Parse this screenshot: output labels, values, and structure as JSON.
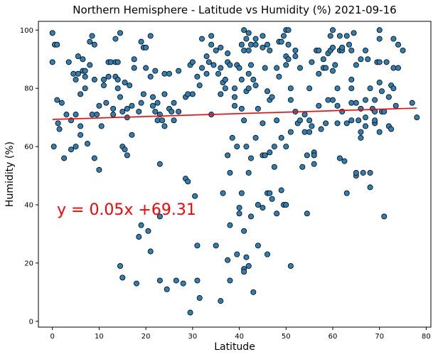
{
  "chart_data": {
    "type": "scatter",
    "title": "Northern Hemisphere - Latitude vs Humidity (%) 2021-09-16",
    "xlabel": "Latitude",
    "ylabel": "Humidity (%)",
    "xlim": [
      -3,
      81
    ],
    "ylim": [
      -2,
      103
    ],
    "xticks": [
      0,
      10,
      20,
      30,
      40,
      50,
      60,
      70,
      80
    ],
    "yticks": [
      0,
      20,
      40,
      60,
      80,
      100
    ],
    "grid": false,
    "regression": {
      "slope": 0.05,
      "intercept": 69.31,
      "x_range": [
        0,
        78
      ],
      "label": "y = 0.05x +69.31",
      "color": "#ff0000"
    },
    "point_color": "#2e7fb3",
    "point_edge_color": "#000000",
    "series": [
      {
        "points": [
          [
            0,
            99
          ],
          [
            0,
            89
          ],
          [
            0.3,
            60
          ],
          [
            0.5,
            95
          ],
          [
            1,
            76
          ],
          [
            1,
            95
          ],
          [
            1.2,
            68
          ],
          [
            1.5,
            66
          ],
          [
            2,
            75
          ],
          [
            2.5,
            56
          ],
          [
            3,
            71
          ],
          [
            3.5,
            89
          ],
          [
            4,
            69
          ],
          [
            4,
            59
          ],
          [
            4.5,
            85
          ],
          [
            5,
            83
          ],
          [
            5,
            71
          ],
          [
            5,
            60
          ],
          [
            5.5,
            91
          ],
          [
            5.5,
            85
          ],
          [
            6,
            67
          ],
          [
            6,
            64
          ],
          [
            6,
            78
          ],
          [
            6.5,
            90
          ],
          [
            6.5,
            86
          ],
          [
            7,
            84
          ],
          [
            7,
            80
          ],
          [
            7,
            86
          ],
          [
            7.5,
            61
          ],
          [
            8,
            96
          ],
          [
            8,
            88
          ],
          [
            8.5,
            98
          ],
          [
            8.5,
            71
          ],
          [
            9,
            95
          ],
          [
            9,
            83
          ],
          [
            9,
            56
          ],
          [
            9.5,
            71
          ],
          [
            10,
            52
          ],
          [
            10,
            74
          ],
          [
            10.5,
            67
          ],
          [
            11,
            81
          ],
          [
            11,
            83
          ],
          [
            11.5,
            75
          ],
          [
            12,
            84
          ],
          [
            12,
            89
          ],
          [
            12.5,
            89
          ],
          [
            13,
            73
          ],
          [
            13,
            71
          ],
          [
            13.5,
            97
          ],
          [
            13.5,
            89
          ],
          [
            13.5,
            84
          ],
          [
            14,
            89
          ],
          [
            14,
            83
          ],
          [
            14,
            80
          ],
          [
            14.5,
            99
          ],
          [
            14.5,
            77
          ],
          [
            14.5,
            19
          ],
          [
            15,
            72
          ],
          [
            15,
            60
          ],
          [
            15,
            15
          ],
          [
            15.5,
            82
          ],
          [
            15.5,
            59
          ],
          [
            16,
            70
          ],
          [
            16,
            73
          ],
          [
            16,
            57
          ],
          [
            16.5,
            81
          ],
          [
            17,
            64
          ],
          [
            17,
            74
          ],
          [
            17.5,
            90
          ],
          [
            17.5,
            87
          ],
          [
            18,
            13
          ],
          [
            18.5,
            72
          ],
          [
            18.5,
            29
          ],
          [
            19,
            96
          ],
          [
            19,
            75
          ],
          [
            19,
            33
          ],
          [
            19.5,
            78
          ],
          [
            19.5,
            94
          ],
          [
            20,
            94
          ],
          [
            20,
            87
          ],
          [
            20.5,
            31
          ],
          [
            21,
            24
          ],
          [
            21,
            84
          ],
          [
            21,
            98
          ],
          [
            21.5,
            77
          ],
          [
            21.5,
            74
          ],
          [
            22,
            72
          ],
          [
            22,
            86
          ],
          [
            22.5,
            75
          ],
          [
            22.5,
            69
          ],
          [
            23,
            71
          ],
          [
            23,
            54
          ],
          [
            23,
            36
          ],
          [
            23,
            14
          ],
          [
            23.5,
            69
          ],
          [
            24,
            85
          ],
          [
            24,
            78
          ],
          [
            24,
            67
          ],
          [
            24.5,
            11
          ],
          [
            25,
            85
          ],
          [
            25,
            73
          ],
          [
            25.5,
            72
          ],
          [
            26,
            69
          ],
          [
            26,
            75
          ],
          [
            26.5,
            14
          ],
          [
            27,
            86
          ],
          [
            27,
            72
          ],
          [
            28,
            13
          ],
          [
            28.5,
            77
          ],
          [
            28.5,
            49
          ],
          [
            29,
            48
          ],
          [
            29,
            78
          ],
          [
            29.5,
            3
          ],
          [
            29.5,
            88
          ],
          [
            30,
            89
          ],
          [
            30,
            78
          ],
          [
            30.5,
            43
          ],
          [
            31,
            14
          ],
          [
            31,
            84
          ],
          [
            31,
            26
          ],
          [
            31.5,
            8
          ],
          [
            31.5,
            81
          ],
          [
            32,
            97
          ],
          [
            32,
            87
          ],
          [
            33,
            91
          ],
          [
            33,
            85
          ],
          [
            33.5,
            89
          ],
          [
            34,
            98
          ],
          [
            34,
            95
          ],
          [
            34,
            71
          ],
          [
            34.5,
            88
          ],
          [
            35,
            93
          ],
          [
            35,
            26
          ],
          [
            35.5,
            85
          ],
          [
            36,
            78
          ],
          [
            36,
            87
          ],
          [
            36,
            94
          ],
          [
            36,
            7
          ],
          [
            36.5,
            82
          ],
          [
            36.5,
            44
          ],
          [
            37,
            80
          ],
          [
            37,
            83
          ],
          [
            37.5,
            92
          ],
          [
            37.5,
            89
          ],
          [
            37.5,
            57
          ],
          [
            37.5,
            21
          ],
          [
            38,
            88
          ],
          [
            38,
            51
          ],
          [
            38,
            33
          ],
          [
            38,
            14
          ],
          [
            38.5,
            63
          ],
          [
            39,
            77
          ],
          [
            39,
            74
          ],
          [
            39,
            80
          ],
          [
            39.5,
            88
          ],
          [
            39.5,
            60
          ],
          [
            39.5,
            23
          ],
          [
            40,
            87
          ],
          [
            40,
            39
          ],
          [
            40,
            37
          ],
          [
            40.5,
            95
          ],
          [
            40.5,
            83
          ],
          [
            40.5,
            73
          ],
          [
            40.5,
            44
          ],
          [
            41,
            93
          ],
          [
            41,
            100
          ],
          [
            41,
            69
          ],
          [
            41,
            31
          ],
          [
            41,
            18
          ],
          [
            41,
            17
          ],
          [
            41.5,
            97
          ],
          [
            41.5,
            79
          ],
          [
            41.5,
            60
          ],
          [
            41.5,
            22
          ],
          [
            42,
            99
          ],
          [
            42,
            93
          ],
          [
            42,
            85
          ],
          [
            42,
            80
          ],
          [
            42,
            51
          ],
          [
            42,
            19
          ],
          [
            42.5,
            95
          ],
          [
            42.5,
            88
          ],
          [
            42.5,
            56
          ],
          [
            42.5,
            36
          ],
          [
            43,
            83
          ],
          [
            43,
            10
          ],
          [
            43.5,
            97
          ],
          [
            43.5,
            95
          ],
          [
            43.5,
            81
          ],
          [
            43.5,
            63
          ],
          [
            44,
            73
          ],
          [
            44,
            40
          ],
          [
            44,
            26
          ],
          [
            45,
            98
          ],
          [
            45,
            94
          ],
          [
            45,
            68
          ],
          [
            45,
            57
          ],
          [
            45,
            39
          ],
          [
            45.5,
            87
          ],
          [
            45.5,
            57
          ],
          [
            46,
            95
          ],
          [
            46,
            79
          ],
          [
            46,
            44
          ],
          [
            46,
            23
          ],
          [
            46.5,
            93
          ],
          [
            46.5,
            76
          ],
          [
            46.5,
            58
          ],
          [
            46.5,
            44
          ],
          [
            47,
            77
          ],
          [
            47,
            42
          ],
          [
            47.5,
            60
          ],
          [
            47.5,
            53
          ],
          [
            48,
            87
          ],
          [
            48,
            69
          ],
          [
            48,
            37
          ],
          [
            48.5,
            96
          ],
          [
            48.5,
            84
          ],
          [
            49,
            96
          ],
          [
            49,
            63
          ],
          [
            49,
            45
          ],
          [
            49.5,
            98
          ],
          [
            49.5,
            40
          ],
          [
            50,
            100
          ],
          [
            50,
            91
          ],
          [
            50,
            88
          ],
          [
            50,
            60
          ],
          [
            50,
            40
          ],
          [
            50.5,
            100
          ],
          [
            50.5,
            90
          ],
          [
            50.5,
            95
          ],
          [
            51,
            80
          ],
          [
            51,
            65
          ],
          [
            51,
            76
          ],
          [
            51,
            19
          ],
          [
            52,
            91
          ],
          [
            52,
            93
          ],
          [
            52,
            72
          ],
          [
            52.5,
            68
          ],
          [
            53,
            87
          ],
          [
            53,
            69
          ],
          [
            53.5,
            53
          ],
          [
            54,
            65
          ],
          [
            54,
            71
          ],
          [
            54.5,
            57
          ],
          [
            54.5,
            37
          ],
          [
            55,
            80
          ],
          [
            55,
            65
          ],
          [
            55,
            69
          ],
          [
            55.5,
            89
          ],
          [
            55.5,
            67
          ],
          [
            56,
            58
          ],
          [
            56,
            54
          ],
          [
            56,
            57
          ],
          [
            56.5,
            93
          ],
          [
            57,
            85
          ],
          [
            57,
            93
          ],
          [
            57,
            74
          ],
          [
            57.5,
            66
          ],
          [
            58,
            87
          ],
          [
            58,
            90
          ],
          [
            58.5,
            87
          ],
          [
            58.5,
            68
          ],
          [
            59,
            76
          ],
          [
            59,
            92
          ],
          [
            59.5,
            98
          ],
          [
            59.5,
            93
          ],
          [
            60,
            100
          ],
          [
            60,
            94
          ],
          [
            60,
            86
          ],
          [
            60,
            76
          ],
          [
            60.5,
            88
          ],
          [
            61,
            68
          ],
          [
            61,
            74
          ],
          [
            61,
            80
          ],
          [
            61.5,
            98
          ],
          [
            61.5,
            93
          ],
          [
            61.5,
            56
          ],
          [
            62,
            93
          ],
          [
            62,
            94
          ],
          [
            62,
            72
          ],
          [
            62.5,
            55
          ],
          [
            63,
            98
          ],
          [
            63,
            68
          ],
          [
            63,
            44
          ],
          [
            63.5,
            95
          ],
          [
            64,
            93
          ],
          [
            64,
            83
          ],
          [
            64,
            80
          ],
          [
            64,
            75
          ],
          [
            64,
            69
          ],
          [
            64.5,
            99
          ],
          [
            65,
            88
          ],
          [
            65,
            75
          ],
          [
            65,
            50
          ],
          [
            65,
            51
          ],
          [
            65.5,
            69
          ],
          [
            66,
            90
          ],
          [
            66,
            73
          ],
          [
            66,
            63
          ],
          [
            66,
            65
          ],
          [
            66.5,
            51
          ],
          [
            67,
            93
          ],
          [
            67,
            76
          ],
          [
            67,
            70
          ],
          [
            67,
            67
          ],
          [
            67.5,
            90
          ],
          [
            68,
            80
          ],
          [
            68,
            46
          ],
          [
            68,
            51
          ],
          [
            68.5,
            73
          ],
          [
            69,
            72
          ],
          [
            69,
            76
          ],
          [
            69,
            68
          ],
          [
            69,
            69
          ],
          [
            69.5,
            89
          ],
          [
            70,
            100
          ],
          [
            70,
            97
          ],
          [
            70,
            89
          ],
          [
            70,
            82
          ],
          [
            70,
            65
          ],
          [
            70.5,
            79
          ],
          [
            70.5,
            72
          ],
          [
            71,
            72
          ],
          [
            71,
            36
          ],
          [
            71.5,
            89
          ],
          [
            72,
            77
          ],
          [
            72,
            67
          ],
          [
            72.5,
            81
          ],
          [
            72.5,
            66
          ],
          [
            73,
            97
          ],
          [
            73,
            80
          ],
          [
            73,
            87
          ],
          [
            73.5,
            74
          ],
          [
            74,
            87
          ],
          [
            74,
            95
          ],
          [
            75,
            93
          ],
          [
            77,
            75
          ],
          [
            78,
            70
          ]
        ]
      }
    ]
  }
}
